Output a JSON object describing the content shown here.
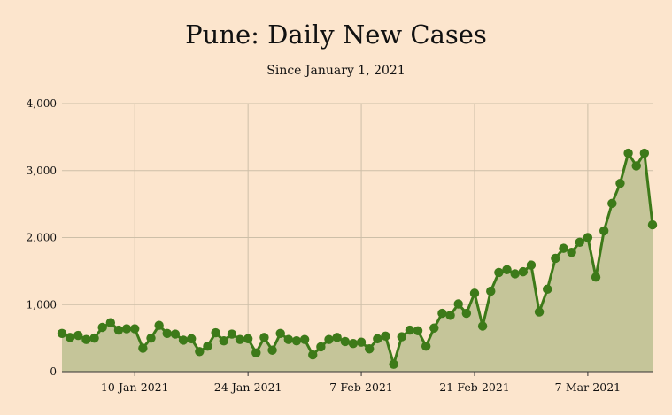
{
  "chart_data": {
    "type": "area",
    "title": "Pune: Daily New Cases",
    "subtitle": "Since January 1, 2021",
    "xlabel": "",
    "ylabel": "",
    "start_date": "2021-01-01",
    "ylim": [
      0,
      4000
    ],
    "yticks": [
      0,
      1000,
      2000,
      3000,
      4000
    ],
    "ytick_labels": [
      "0",
      "1,000",
      "2,000",
      "3,000",
      "4,000"
    ],
    "xticks": [
      {
        "date": "2021-01-10",
        "label": "10-Jan-2021"
      },
      {
        "date": "2021-01-24",
        "label": "24-Jan-2021"
      },
      {
        "date": "2021-02-07",
        "label": "7-Feb-2021"
      },
      {
        "date": "2021-02-21",
        "label": "21-Feb-2021"
      },
      {
        "date": "2021-03-07",
        "label": "7-Mar-2021"
      }
    ],
    "grid": true,
    "colors": {
      "line": "#3d7a19",
      "fill": "#c5c599",
      "grid": "#cdbfa8",
      "axis": "#333333"
    },
    "series": [
      {
        "name": "Daily New Cases",
        "values": [
          570,
          510,
          540,
          480,
          500,
          660,
          730,
          620,
          640,
          640,
          350,
          500,
          690,
          570,
          560,
          470,
          490,
          300,
          380,
          580,
          460,
          560,
          480,
          490,
          280,
          510,
          320,
          570,
          480,
          460,
          480,
          250,
          370,
          480,
          510,
          450,
          420,
          440,
          340,
          490,
          530,
          110,
          520,
          620,
          610,
          380,
          650,
          870,
          840,
          1010,
          870,
          1170,
          680,
          1200,
          1480,
          1520,
          1460,
          1490,
          1590,
          890,
          1230,
          1690,
          1840,
          1780,
          1930,
          2000,
          1410,
          2100,
          2510,
          2810,
          3260,
          3070,
          3260,
          2190
        ]
      }
    ]
  }
}
